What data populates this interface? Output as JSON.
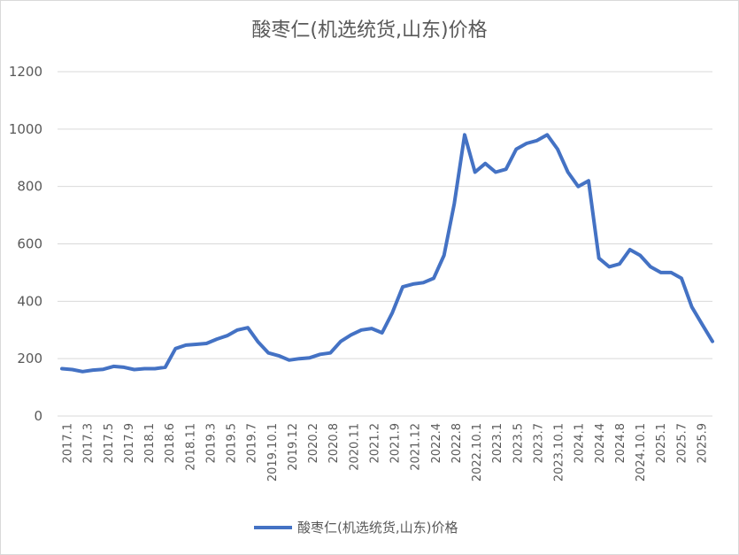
{
  "chart_data": {
    "type": "line",
    "title": "酸枣仁(机选统货,山东)价格",
    "xlabel": "",
    "ylabel": "",
    "ylim": [
      0,
      1200
    ],
    "yticks": [
      0,
      200,
      400,
      600,
      800,
      1000,
      1200
    ],
    "grid": true,
    "legend_position": "bottom",
    "color": "#4472C4",
    "x_tick_labels": [
      "2017.1",
      "2017.3",
      "2017.5",
      "2017.9",
      "2018.1",
      "2018.6",
      "2018.11",
      "2019.3",
      "2019.5",
      "2019.7",
      "2019.10.1",
      "2019.12",
      "2020.2",
      "2020.8",
      "2020.11",
      "2021.2",
      "2021.9",
      "2021.12",
      "2022.4",
      "2022.8",
      "2022.10.1",
      "2023.1",
      "2023.5",
      "2023.7",
      "2023.10.1",
      "2024.1",
      "2024.4",
      "2024.8",
      "2024.10.1",
      "2025.1",
      "2025.7",
      "2025.9"
    ],
    "series": [
      {
        "name": "酸枣仁(机选统货,山东)价格",
        "values": [
          165,
          162,
          155,
          160,
          163,
          173,
          170,
          162,
          165,
          165,
          170,
          235,
          247,
          250,
          253,
          268,
          280,
          300,
          308,
          258,
          220,
          210,
          195,
          200,
          203,
          215,
          220,
          260,
          283,
          300,
          305,
          290,
          360,
          450,
          460,
          465,
          480,
          560,
          740,
          980,
          850,
          880,
          850,
          860,
          930,
          950,
          960,
          980,
          930,
          850,
          800,
          820,
          550,
          520,
          530,
          580,
          560,
          520,
          500,
          500,
          480,
          380,
          320,
          260
        ]
      }
    ]
  }
}
